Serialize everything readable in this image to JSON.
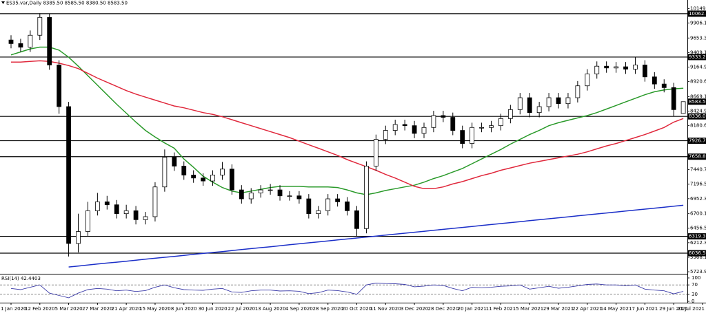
{
  "chart_data": {
    "type": "candlestick",
    "title": "ES35.var,Daily  8385.50 8585.50 8380.50 8583.50",
    "categories": [
      "1 Jan 2020",
      null,
      null,
      "12 Feb 2020",
      null,
      null,
      "5 Mar 2020",
      null,
      null,
      "27 Mar 2020",
      null,
      null,
      "21 Apr 2020",
      null,
      null,
      "15 May 2020",
      null,
      null,
      "8 Jun 2020",
      null,
      null,
      "30 Jun 2020",
      null,
      null,
      "22 Jul 2020",
      null,
      null,
      "13 Aug 2020",
      null,
      null,
      "4 Sep 2020",
      null,
      null,
      "28 Sep 2020",
      null,
      null,
      "20 Oct 2020",
      null,
      null,
      "11 Nov 2020",
      null,
      null,
      "3 Dec 2020",
      null,
      null,
      "28 Dec 2020",
      null,
      null,
      "20 Jan 2021",
      null,
      null,
      "11 Feb 2021",
      null,
      null,
      "5 Mar 2021",
      null,
      null,
      "29 Mar 2021",
      null,
      null,
      "22 Apr 2021",
      null,
      null,
      "14 May 2021",
      null,
      null,
      "7 Jun 2021",
      null,
      null,
      "29 Jun 2021",
      null,
      null,
      "21 Jul 2021"
    ],
    "open": [
      9620,
      9560,
      9500,
      9700,
      10000,
      9200,
      8500,
      6200,
      6400,
      6750,
      6900,
      6850,
      6700,
      6750,
      6600,
      6650,
      7150,
      7650,
      7500,
      7350,
      7300,
      7250,
      7350,
      7450,
      7100,
      6950,
      7050,
      7100,
      7100,
      7000,
      7000,
      6950,
      6700,
      6750,
      6950,
      6900,
      6750,
      6450,
      7500,
      7950,
      8100,
      8200,
      8180,
      8050,
      8150,
      8350,
      8320,
      8100,
      7880,
      8150,
      8150,
      8180,
      8300,
      8450,
      8650,
      8400,
      8500,
      8650,
      8550,
      8650,
      8850,
      9050,
      9180,
      9150,
      9170,
      9130,
      9200,
      9000,
      8880,
      8820,
      8385.5,
      null,
      null
    ],
    "high": [
      9700,
      9640,
      9780,
      10070,
      10060,
      9280,
      8580,
      6700,
      6900,
      7050,
      7000,
      6930,
      6850,
      6830,
      6730,
      7230,
      7780,
      7730,
      7580,
      7430,
      7380,
      7430,
      7570,
      7530,
      7180,
      7130,
      7180,
      7200,
      7180,
      7080,
      7080,
      7030,
      6830,
      7030,
      7030,
      6980,
      6830,
      7580,
      8030,
      8180,
      8280,
      8280,
      8260,
      8230,
      8430,
      8430,
      8400,
      8180,
      8230,
      8230,
      8260,
      8380,
      8530,
      8730,
      8730,
      8580,
      8730,
      8730,
      8730,
      8930,
      9130,
      9260,
      9260,
      9250,
      9250,
      9333,
      9280,
      9080,
      8960,
      8900,
      8585.5,
      null,
      null
    ],
    "low": [
      9480,
      9420,
      9420,
      9620,
      9120,
      8380,
      5980,
      6050,
      6320,
      6670,
      6770,
      6620,
      6620,
      6520,
      6520,
      6570,
      7070,
      7420,
      7270,
      7220,
      7170,
      7170,
      7270,
      7020,
      6870,
      6870,
      6970,
      7020,
      6920,
      6920,
      6870,
      6620,
      6620,
      6670,
      6820,
      6670,
      6320,
      6370,
      7420,
      7870,
      8020,
      8100,
      7970,
      7970,
      8070,
      8240,
      8020,
      7800,
      7800,
      8070,
      8070,
      8100,
      8220,
      8370,
      8320,
      8320,
      8420,
      8470,
      8470,
      8570,
      8770,
      8970,
      9070,
      9070,
      9050,
      9050,
      8920,
      8800,
      8740,
      8336,
      8380.5,
      null,
      null
    ],
    "close": [
      9560,
      9500,
      9700,
      10000,
      9200,
      8500,
      6200,
      6400,
      6750,
      6900,
      6850,
      6700,
      6750,
      6600,
      6650,
      7150,
      7650,
      7500,
      7350,
      7300,
      7250,
      7350,
      7450,
      7100,
      6950,
      7050,
      7100,
      7100,
      7000,
      7000,
      6950,
      6700,
      6750,
      6950,
      6900,
      6750,
      6450,
      7500,
      7950,
      8100,
      8200,
      8180,
      8050,
      8150,
      8350,
      8320,
      8100,
      7880,
      8150,
      8150,
      8180,
      8300,
      8450,
      8650,
      8400,
      8500,
      8650,
      8550,
      8650,
      8850,
      9050,
      9180,
      9150,
      9170,
      9130,
      9200,
      9000,
      8880,
      8820,
      8450,
      8583.5,
      null,
      null
    ],
    "up_color": "#ffffff",
    "down_color": "#000000",
    "overlays": [
      {
        "color": "#2a9a2a",
        "values": [
          9370,
          9420,
          9470,
          9500,
          9500,
          9450,
          9330,
          9180,
          9020,
          8860,
          8700,
          8540,
          8390,
          8240,
          8100,
          7990,
          7890,
          7800,
          7620,
          7480,
          7330,
          7230,
          7140,
          7080,
          7050,
          7080,
          7110,
          7140,
          7160,
          7160,
          7160,
          7150,
          7150,
          7150,
          7140,
          7100,
          7050,
          7020,
          7050,
          7090,
          7120,
          7150,
          7180,
          7230,
          7290,
          7340,
          7400,
          7460,
          7540,
          7620,
          7700,
          7780,
          7870,
          7950,
          8030,
          8100,
          8180,
          8230,
          8270,
          8310,
          8350,
          8400,
          8460,
          8520,
          8580,
          8640,
          8700,
          8750,
          8780,
          8800,
          8810,
          null,
          null
        ]
      },
      {
        "color": "#e0283c",
        "values": [
          9250,
          9250,
          9260,
          9270,
          9260,
          9230,
          9190,
          9140,
          9060,
          8980,
          8910,
          8840,
          8770,
          8710,
          8660,
          8610,
          8560,
          8510,
          8480,
          8440,
          8400,
          8370,
          8330,
          8280,
          8230,
          8180,
          8130,
          8080,
          8030,
          7980,
          7920,
          7860,
          7800,
          7740,
          7680,
          7610,
          7550,
          7490,
          7430,
          7360,
          7300,
          7230,
          7160,
          7120,
          7120,
          7150,
          7200,
          7240,
          7290,
          7340,
          7380,
          7430,
          7470,
          7510,
          7550,
          7580,
          7610,
          7640,
          7670,
          7700,
          7740,
          7790,
          7840,
          7880,
          7930,
          7980,
          8030,
          8090,
          8150,
          8240,
          8300,
          null,
          null
        ]
      },
      {
        "color": "#1a2ec8",
        "values": [
          null,
          null,
          null,
          null,
          null,
          null,
          5805,
          5821,
          5837,
          5854,
          5870,
          5886,
          5902,
          5918,
          5935,
          5951,
          5967,
          5983,
          5999,
          6016,
          6032,
          6048,
          6064,
          6080,
          6097,
          6113,
          6129,
          6145,
          6161,
          6178,
          6194,
          6210,
          6226,
          6242,
          6259,
          6275,
          6291,
          6307,
          6323,
          6340,
          6356,
          6372,
          6388,
          6404,
          6421,
          6437,
          6453,
          6469,
          6485,
          6502,
          6518,
          6534,
          6550,
          6566,
          6583,
          6599,
          6615,
          6631,
          6647,
          6664,
          6680,
          6696,
          6712,
          6728,
          6745,
          6761,
          6777,
          6793,
          6809,
          6826,
          6842,
          null,
          null
        ]
      }
    ],
    "ylim": [
      5690,
      10200
    ],
    "yticks": [
      10149.15,
      9906.15,
      {
        "value": 9653.3,
        "label": "9653.30"
      },
      {
        "value": 9409.1,
        "label": "9409.10"
      },
      {
        "value": 9164.9,
        "label": "9164.90"
      },
      8920.65,
      {
        "value": 8669.1,
        "label": "8669.10"
      },
      {
        "value": 8424.9,
        "label": "8424.90"
      },
      8180.65,
      {
        "value": 7440.7,
        "label": "7440.70"
      },
      {
        "value": 7196.5,
        "label": "7196.50"
      },
      {
        "value": 6952.3,
        "label": "6952.30"
      },
      {
        "value": 6700.1,
        "label": "6700.10"
      },
      {
        "value": 6456.5,
        "label": "6456.50"
      },
      {
        "value": 6212.3,
        "label": "6212.30"
      },
      {
        "value": 5968.1,
        "label": "5968.10"
      },
      {
        "value": 5723.9,
        "label": "5723.90"
      }
    ],
    "levels": [
      {
        "value": 10062.5,
        "label": "10062.50"
      },
      9333.29,
      8336.09,
      7926.79,
      7658.89,
      6319.37,
      6036.58
    ],
    "level_color": "#000000",
    "last_price": {
      "value": 8583.5,
      "label": "8583.50"
    },
    "rsi": {
      "label": "RSI(14) 42.4403",
      "color": "#3a3aa8",
      "values": [
        55,
        50,
        60,
        70,
        35,
        25,
        15,
        35,
        50,
        55,
        52,
        45,
        48,
        42,
        46,
        60,
        70,
        58,
        50,
        48,
        47,
        52,
        55,
        40,
        38,
        45,
        48,
        48,
        44,
        45,
        43,
        33,
        37,
        48,
        46,
        40,
        30,
        70,
        78,
        76,
        75,
        72,
        62,
        65,
        70,
        68,
        55,
        45,
        60,
        58,
        60,
        64,
        66,
        70,
        52,
        58,
        64,
        56,
        60,
        66,
        72,
        74,
        70,
        70,
        66,
        70,
        52,
        48,
        45,
        32,
        42.4403,
        null,
        null
      ],
      "ylim": [
        0,
        100
      ],
      "yticks": [
        100,
        70,
        30,
        0
      ],
      "levels": [
        70,
        30
      ]
    }
  }
}
